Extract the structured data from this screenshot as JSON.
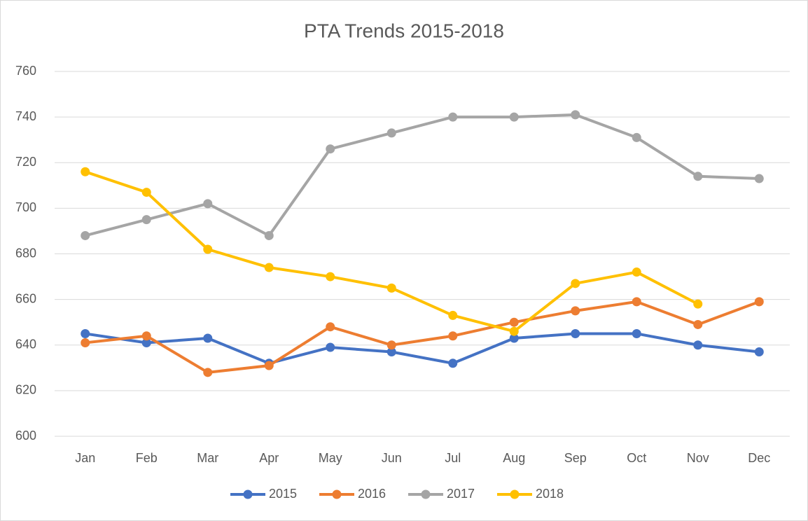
{
  "chart_data": {
    "type": "line",
    "title": "PTA Trends 2015-2018",
    "categories": [
      "Jan",
      "Feb",
      "Mar",
      "Apr",
      "May",
      "Jun",
      "Jul",
      "Aug",
      "Sep",
      "Oct",
      "Nov",
      "Dec"
    ],
    "series": [
      {
        "name": "2015",
        "color": "#4472c4",
        "values": [
          645,
          641,
          643,
          632,
          639,
          637,
          632,
          643,
          645,
          645,
          640,
          637
        ]
      },
      {
        "name": "2016",
        "color": "#ed7d31",
        "values": [
          641,
          644,
          628,
          631,
          648,
          640,
          644,
          650,
          655,
          659,
          649,
          659
        ]
      },
      {
        "name": "2017",
        "color": "#a5a5a5",
        "values": [
          688,
          695,
          702,
          688,
          726,
          733,
          740,
          740,
          741,
          731,
          714,
          713
        ]
      },
      {
        "name": "2018",
        "color": "#ffc000",
        "values": [
          716,
          707,
          682,
          674,
          670,
          665,
          653,
          646,
          667,
          672,
          658,
          null
        ]
      }
    ],
    "ylim": [
      600,
      760
    ],
    "yticks": [
      600,
      620,
      640,
      660,
      680,
      700,
      720,
      740,
      760
    ],
    "grid": true,
    "legend": "bottom"
  }
}
